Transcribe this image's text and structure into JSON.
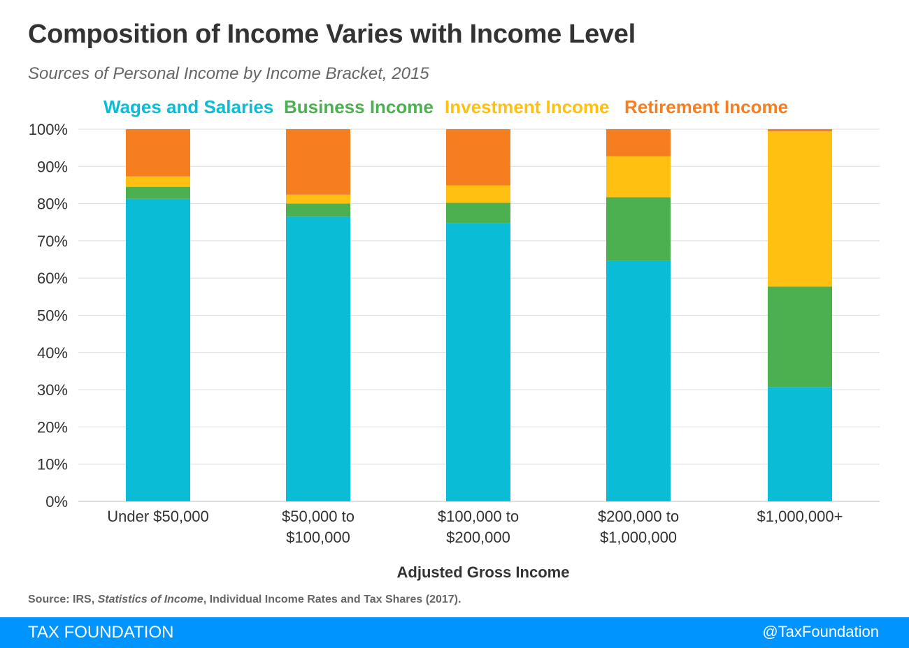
{
  "title": "Composition of Income Varies with Income Level",
  "subtitle": "Sources of Personal Income by Income Bracket, 2015",
  "source": {
    "prefix": "Source: IRS, ",
    "italic": "Statistics of Income",
    "suffix": ", Individual Income Rates and Tax Shares (2017)."
  },
  "footer": {
    "brand": "TAX FOUNDATION",
    "handle": "@TaxFoundation"
  },
  "chart_data": {
    "type": "bar",
    "stacked": true,
    "title": "Composition of Income Varies with Income Level",
    "subtitle": "Sources of Personal Income by Income Bracket, 2015",
    "xlabel": "Adjusted Gross Income",
    "ylabel": "",
    "ylim": [
      0,
      100
    ],
    "yticks": [
      "0%",
      "10%",
      "20%",
      "30%",
      "40%",
      "50%",
      "60%",
      "70%",
      "80%",
      "90%",
      "100%"
    ],
    "grid": true,
    "legend_position": "top",
    "categories": [
      [
        "Under $50,000"
      ],
      [
        "$50,000 to",
        "$100,000"
      ],
      [
        "$100,000 to",
        "$200,000"
      ],
      [
        "$200,000 to",
        "$1,000,000"
      ],
      [
        "$1,000,000+"
      ]
    ],
    "series": [
      {
        "name": "Wages and Salaries",
        "color": "#0abcd6",
        "values": [
          81.3,
          76.5,
          74.8,
          64.7,
          30.7
        ]
      },
      {
        "name": "Business Income",
        "color": "#4caf50",
        "values": [
          3.2,
          3.5,
          5.4,
          17.0,
          27.0
        ]
      },
      {
        "name": "Investment Income",
        "color": "#ffc012",
        "values": [
          2.8,
          2.4,
          4.7,
          11.0,
          41.7
        ]
      },
      {
        "name": "Retirement Income",
        "color": "#f47e20",
        "values": [
          12.7,
          17.6,
          15.1,
          7.3,
          0.6
        ]
      }
    ]
  }
}
